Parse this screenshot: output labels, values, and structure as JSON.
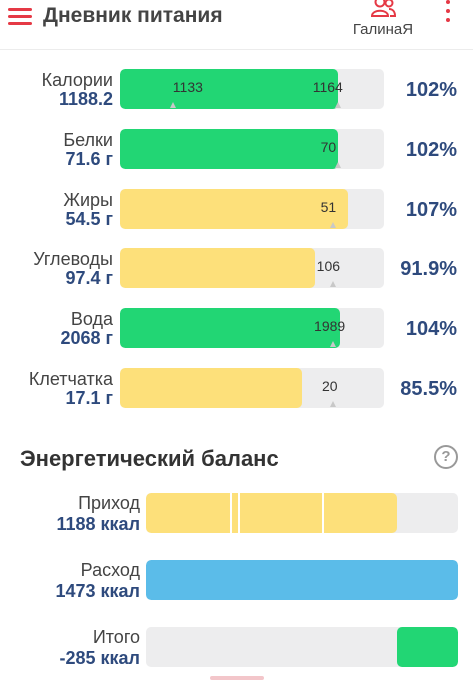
{
  "app": {
    "title": "Дневник питания",
    "user_name": "ГалинаЯ",
    "accent_color": "#e53945"
  },
  "icons": {
    "menu": "hamburger-menu-icon",
    "user": "users-icon",
    "more": "vertical-dots-icon",
    "help": "question-circle-icon"
  },
  "nutrients": [
    {
      "name": "Калории",
      "value": "1188.2",
      "percent": "102%",
      "fill_percent": 82.5,
      "color": "green",
      "labels": [
        {
          "text": "1133",
          "at": 20
        },
        {
          "text": "1164",
          "at": 73
        }
      ],
      "ticks": [
        20,
        82.5
      ]
    },
    {
      "name": "Белки",
      "value": "71.6 г",
      "percent": "102%",
      "fill_percent": 82.5,
      "color": "green",
      "labels": [
        {
          "text": "70",
          "at": 76
        }
      ],
      "ticks": [
        82.5
      ]
    },
    {
      "name": "Жиры",
      "value": "54.5 г",
      "percent": "107%",
      "fill_percent": 86.4,
      "color": "yellow",
      "labels": [
        {
          "text": "51",
          "at": 76
        }
      ],
      "ticks": [
        80.7
      ]
    },
    {
      "name": "Углеводы",
      "value": "97.4 г",
      "percent": "91.9%",
      "fill_percent": 73.9,
      "color": "yellow",
      "labels": [
        {
          "text": "106",
          "at": 74.5
        }
      ],
      "ticks": [
        80.7
      ]
    },
    {
      "name": "Вода",
      "value": "2068 г",
      "percent": "104%",
      "fill_percent": 83.3,
      "color": "green",
      "labels": [
        {
          "text": "1989",
          "at": 73.5
        }
      ],
      "ticks": [
        80.7
      ]
    },
    {
      "name": "Клетчатка",
      "value": "17.1 г",
      "percent": "85.5%",
      "fill_percent": 68.9,
      "color": "yellow",
      "labels": [
        {
          "text": "20",
          "at": 76.5
        }
      ],
      "ticks": [
        80.7
      ]
    }
  ],
  "energy_balance": {
    "title": "Энергетический баланс",
    "rows": [
      {
        "name": "Приход",
        "value": "1188 ккал",
        "segments": [
          {
            "from": 0,
            "to": 80.3,
            "color": "#fde07a"
          }
        ],
        "dividers": [
          26.9,
          29.5,
          56.4
        ]
      },
      {
        "name": "Расход",
        "value": "1473 ккал",
        "segments": [
          {
            "from": 0,
            "to": 100,
            "color": "#5bbce9"
          }
        ],
        "dividers": []
      },
      {
        "name": "Итого",
        "value": "-285 ккал",
        "segments": [
          {
            "from": 80.3,
            "to": 100,
            "color": "#22d674"
          }
        ],
        "dividers": []
      }
    ]
  }
}
